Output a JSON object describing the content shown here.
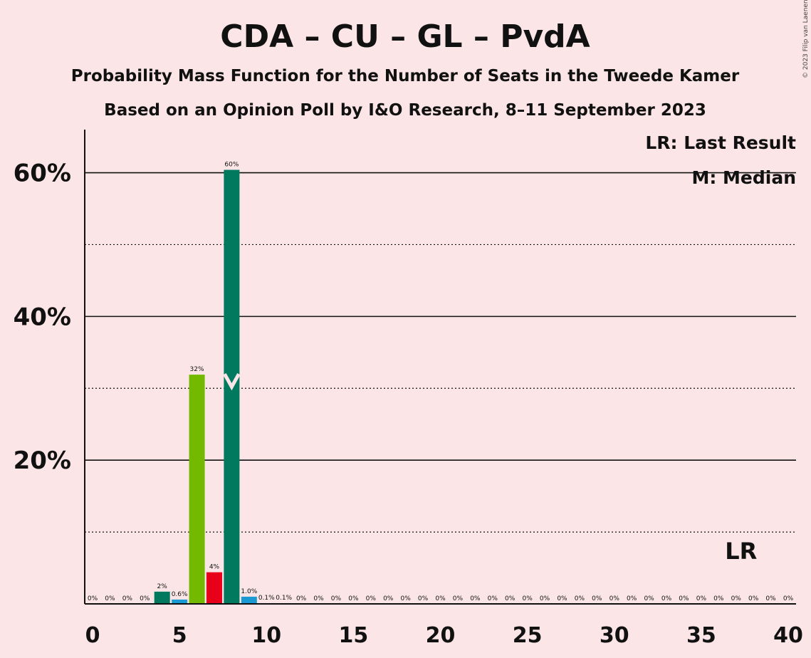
{
  "chart_data": {
    "type": "bar",
    "title": "CDA – CU – GL – PvdA",
    "subtitle_1": "Probability Mass Function for the Number of Seats in the Tweede Kamer",
    "subtitle_2": "Based on an Opinion Poll by I&O Research, 8–11 September 2023",
    "copyright": "© 2023 Filip van Laenen",
    "legend": {
      "last_result": "LR: Last Result",
      "median": "M: Median"
    },
    "lr_label": "LR",
    "median_marker": "M",
    "median_seat": 8,
    "last_result_seat": 37,
    "xlim": [
      0,
      40
    ],
    "ylim": [
      0,
      66
    ],
    "x_ticks": [
      "0",
      "5",
      "10",
      "15",
      "20",
      "25",
      "30",
      "35",
      "40"
    ],
    "x_tick_values": [
      0,
      5,
      10,
      15,
      20,
      25,
      30,
      35,
      40
    ],
    "y_ticks": [
      "20%",
      "40%",
      "60%"
    ],
    "y_tick_values": [
      20,
      40,
      60
    ],
    "y_minor_gridlines": [
      10,
      30,
      50
    ],
    "seats": [
      0,
      1,
      2,
      3,
      4,
      5,
      6,
      7,
      8,
      9,
      10,
      11,
      12,
      13,
      14,
      15,
      16,
      17,
      18,
      19,
      20,
      21,
      22,
      23,
      24,
      25,
      26,
      27,
      28,
      29,
      30,
      31,
      32,
      33,
      34,
      35,
      36,
      37,
      38,
      39,
      40
    ],
    "values": [
      0,
      0,
      0,
      0,
      1.7,
      0.6,
      31.9,
      4.4,
      60.4,
      1.0,
      0.1,
      0.1,
      0,
      0,
      0,
      0,
      0,
      0,
      0,
      0,
      0,
      0,
      0,
      0,
      0,
      0,
      0,
      0,
      0,
      0,
      0,
      0,
      0,
      0,
      0,
      0,
      0,
      0,
      0,
      0,
      0
    ],
    "labels": [
      "0%",
      "0%",
      "0%",
      "0%",
      "2%",
      "0.6%",
      "32%",
      "4%",
      "60%",
      "1.0%",
      "0.1%",
      "0.1%",
      "0%",
      "0%",
      "0%",
      "0%",
      "0%",
      "0%",
      "0%",
      "0%",
      "0%",
      "0%",
      "0%",
      "0%",
      "0%",
      "0%",
      "0%",
      "0%",
      "0%",
      "0%",
      "0%",
      "0%",
      "0%",
      "0%",
      "0%",
      "0%",
      "0%",
      "0%",
      "0%",
      "0%",
      "0%"
    ],
    "bar_colors": [
      "#1f77b4",
      "#1f77b4",
      "#1f77b4",
      "#1f77b4",
      "#00795f",
      "#1b99d3",
      "#72b900",
      "#e8001a",
      "#00795f",
      "#1b99d3",
      "#1b99d3",
      "#1b99d3",
      "#1b99d3",
      "#1b99d3",
      "#1b99d3",
      "#1b99d3",
      "#1b99d3",
      "#1b99d3",
      "#1b99d3",
      "#1b99d3",
      "#1b99d3",
      "#1b99d3",
      "#1b99d3",
      "#1b99d3",
      "#1b99d3",
      "#1b99d3",
      "#1b99d3",
      "#1b99d3",
      "#1b99d3",
      "#1b99d3",
      "#1b99d3",
      "#1b99d3",
      "#1b99d3",
      "#1b99d3",
      "#1b99d3",
      "#1b99d3",
      "#1b99d3",
      "#1b99d3",
      "#1b99d3",
      "#1b99d3",
      "#1b99d3"
    ],
    "background_color": "#fbe5e6"
  }
}
